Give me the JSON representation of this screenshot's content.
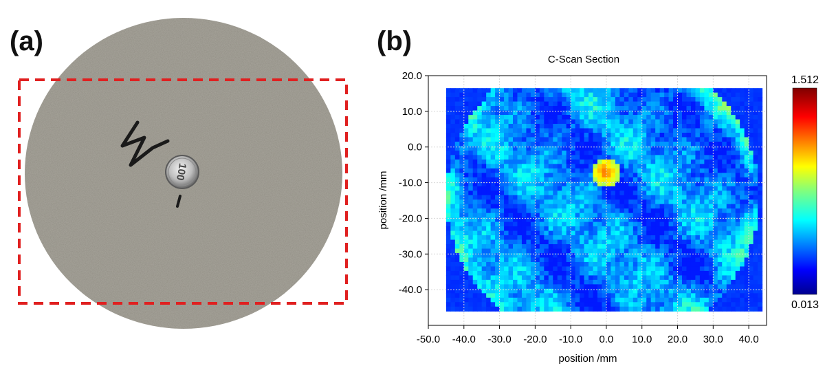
{
  "panel_labels": {
    "a": "(a)",
    "b": "(b)"
  },
  "photo": {
    "coin_text": "100",
    "marker_symbol": "ν",
    "dashed_box_color": "#e02020",
    "disc_color": "#a8a59c"
  },
  "chart_data": {
    "type": "heatmap",
    "title": "C-Scan Section",
    "xlabel": "position /mm",
    "ylabel": "position /mm",
    "xlim": [
      -50,
      45
    ],
    "ylim": [
      -50,
      20
    ],
    "x_ticks": [
      -50,
      -40,
      -30,
      -20,
      -10,
      0,
      10,
      20,
      30,
      40
    ],
    "y_ticks": [
      20,
      10,
      0,
      -10,
      -20,
      -30,
      -40
    ],
    "x_tick_labels": [
      "-50.0",
      "-40.0",
      "-30.0",
      "-20.0",
      "-10.0",
      "0.0",
      "10.0",
      "20.0",
      "30.0",
      "40.0"
    ],
    "y_tick_labels": [
      "20.0",
      "10.0",
      "0.0",
      "-10.0",
      "-20.0",
      "-30.0",
      "-40.0"
    ],
    "grid": true,
    "scan_extent": {
      "x": [
        -45,
        43
      ],
      "y": [
        -45,
        16.5
      ]
    },
    "colorbar": {
      "min": 0.013,
      "max": 1.512,
      "min_label": "0.013",
      "max_label": "1.512",
      "colormap": "jet"
    },
    "hotspot": {
      "x": 0,
      "y": -7,
      "radius_mm": 4,
      "value": 1.15
    },
    "background_level": 0.25
  }
}
